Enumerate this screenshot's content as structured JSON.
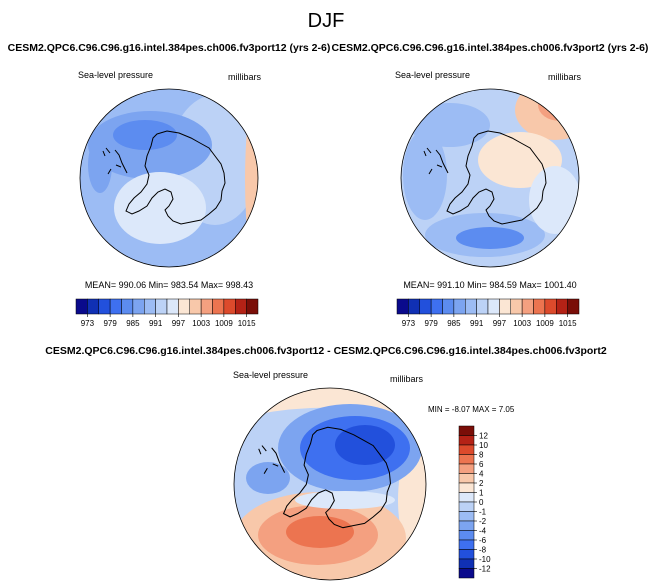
{
  "figure": {
    "title": "DJF"
  },
  "chart_data": [
    {
      "type": "heatmap",
      "projection": "south-polar stereographic",
      "title": "CESM2.QPC6.C96.C96.g16.intel.384pes.ch006.fv3port12 (yrs 2-6)",
      "left_label": "Sea-level pressure",
      "right_label": "millibars",
      "stats_text": "MEAN= 990.06  Min= 983.54  Max= 998.43",
      "mean": 990.06,
      "min": 983.54,
      "max": 998.43,
      "colorbar_orientation": "horizontal",
      "colorbar_levels": [
        973,
        976,
        979,
        982,
        985,
        988,
        991,
        994,
        997,
        1000,
        1003,
        1006,
        1009,
        1012,
        1015
      ],
      "colorbar_tick_labels": [
        "973",
        "979",
        "985",
        "991",
        "997",
        "1003",
        "1009",
        "1015"
      ],
      "colors": [
        "#0a0a8c",
        "#1030b4",
        "#2250dc",
        "#3e70f0",
        "#5c8cf0",
        "#7ca4f0",
        "#9cbcf4",
        "#bcd2f6",
        "#dce8fa",
        "#fbe6d4",
        "#f8c8aa",
        "#f4a080",
        "#ec7450",
        "#dc4a2c",
        "#b42216",
        "#7a0e08"
      ],
      "field_levels": [
        985,
        988,
        991,
        994,
        997
      ]
    },
    {
      "type": "heatmap",
      "projection": "south-polar stereographic",
      "title": "CESM2.QPC6.C96.C96.g16.intel.384pes.ch006.fv3port2 (yrs 2-6)",
      "left_label": "Sea-level pressure",
      "right_label": "millibars",
      "stats_text": "MEAN= 991.10  Min= 984.59  Max= 1001.40",
      "mean": 991.1,
      "min": 984.59,
      "max": 1001.4,
      "colorbar_orientation": "horizontal",
      "colorbar_levels": [
        973,
        976,
        979,
        982,
        985,
        988,
        991,
        994,
        997,
        1000,
        1003,
        1006,
        1009,
        1012,
        1015
      ],
      "colorbar_tick_labels": [
        "973",
        "979",
        "985",
        "991",
        "997",
        "1003",
        "1009",
        "1015"
      ],
      "colors": [
        "#0a0a8c",
        "#1030b4",
        "#2250dc",
        "#3e70f0",
        "#5c8cf0",
        "#7ca4f0",
        "#9cbcf4",
        "#bcd2f6",
        "#dce8fa",
        "#fbe6d4",
        "#f8c8aa",
        "#f4a080",
        "#ec7450",
        "#dc4a2c",
        "#b42216",
        "#7a0e08"
      ],
      "field_levels": [
        985,
        988,
        991,
        994,
        997,
        1000
      ]
    },
    {
      "type": "heatmap",
      "projection": "south-polar stereographic",
      "title": "CESM2.QPC6.C96.C96.g16.intel.384pes.ch006.fv3port12 - CESM2.QPC6.C96.C96.g16.intel.384pes.ch006.fv3port2",
      "left_label": "Sea-level pressure",
      "right_label": "millibars",
      "stats_text": "MIN =  -8.07 MAX =   7.05",
      "min": -8.07,
      "max": 7.05,
      "colorbar_orientation": "vertical",
      "colorbar_levels": [
        -12,
        -10,
        -8,
        -6,
        -4,
        -2,
        -1,
        0,
        1,
        2,
        4,
        6,
        8,
        10,
        12
      ],
      "colorbar_tick_labels": [
        "12",
        "10",
        "8",
        "6",
        "4",
        "2",
        "1",
        "0",
        "-1",
        "-2",
        "-4",
        "-6",
        "-8",
        "-10",
        "-12"
      ],
      "colors": [
        "#0a0a8c",
        "#1030b4",
        "#2250dc",
        "#3e70f0",
        "#5c8cf0",
        "#7ca4f0",
        "#9cbcf4",
        "#bcd2f6",
        "#dce8fa",
        "#fbe6d4",
        "#f8c8aa",
        "#f4a080",
        "#ec7450",
        "#dc4a2c",
        "#b42216",
        "#7a0e08"
      ],
      "field_levels": [
        -8,
        -6,
        -4,
        -2,
        -1,
        0,
        1,
        2,
        4,
        6
      ]
    }
  ]
}
